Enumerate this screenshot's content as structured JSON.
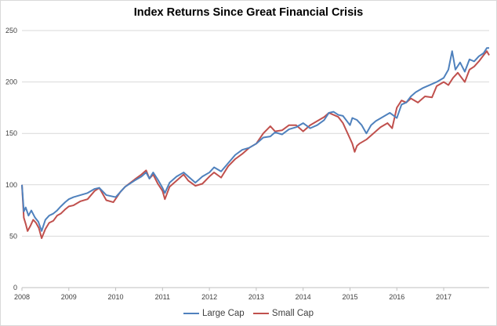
{
  "chart_data": {
    "type": "line",
    "title": "Index Returns Since Great Financial Crisis",
    "xlabel": "",
    "ylabel": "",
    "ylim": [
      0,
      250
    ],
    "yticks": [
      0,
      50,
      100,
      150,
      200,
      250
    ],
    "xlim": [
      2008.0,
      2017.97
    ],
    "xticks": [
      "2008",
      "2009",
      "2010",
      "2011",
      "2012",
      "2013",
      "2014",
      "2015",
      "2016",
      "2017"
    ],
    "grid": true,
    "legend_position": "bottom",
    "series": [
      {
        "name": "Large Cap",
        "color": "#4f81bd",
        "points": [
          [
            2008.0,
            100
          ],
          [
            2008.04,
            74
          ],
          [
            2008.08,
            78
          ],
          [
            2008.14,
            70
          ],
          [
            2008.2,
            75
          ],
          [
            2008.28,
            68
          ],
          [
            2008.35,
            64
          ],
          [
            2008.42,
            55
          ],
          [
            2008.5,
            66
          ],
          [
            2008.58,
            70
          ],
          [
            2008.67,
            72
          ],
          [
            2008.75,
            75
          ],
          [
            2008.83,
            79
          ],
          [
            2008.92,
            83
          ],
          [
            2009.0,
            86
          ],
          [
            2009.1,
            88
          ],
          [
            2009.25,
            90
          ],
          [
            2009.4,
            92
          ],
          [
            2009.55,
            96
          ],
          [
            2009.65,
            97
          ],
          [
            2009.8,
            90
          ],
          [
            2010.0,
            88
          ],
          [
            2010.1,
            93
          ],
          [
            2010.2,
            98
          ],
          [
            2010.4,
            104
          ],
          [
            2010.55,
            108
          ],
          [
            2010.65,
            112
          ],
          [
            2010.72,
            106
          ],
          [
            2010.8,
            112
          ],
          [
            2010.9,
            105
          ],
          [
            2011.0,
            97
          ],
          [
            2011.05,
            92
          ],
          [
            2011.15,
            102
          ],
          [
            2011.3,
            108
          ],
          [
            2011.45,
            112
          ],
          [
            2011.55,
            108
          ],
          [
            2011.7,
            102
          ],
          [
            2011.85,
            108
          ],
          [
            2012.0,
            112
          ],
          [
            2012.1,
            117
          ],
          [
            2012.25,
            113
          ],
          [
            2012.4,
            121
          ],
          [
            2012.55,
            129
          ],
          [
            2012.7,
            134
          ],
          [
            2012.85,
            136
          ],
          [
            2013.0,
            140
          ],
          [
            2013.15,
            146
          ],
          [
            2013.3,
            147
          ],
          [
            2013.4,
            151
          ],
          [
            2013.55,
            149
          ],
          [
            2013.7,
            154
          ],
          [
            2013.85,
            156
          ],
          [
            2014.0,
            160
          ],
          [
            2014.15,
            155
          ],
          [
            2014.3,
            158
          ],
          [
            2014.45,
            163
          ],
          [
            2014.55,
            170
          ],
          [
            2014.65,
            171
          ],
          [
            2014.75,
            168
          ],
          [
            2014.85,
            167
          ],
          [
            2015.0,
            158
          ],
          [
            2015.05,
            165
          ],
          [
            2015.15,
            163
          ],
          [
            2015.25,
            158
          ],
          [
            2015.35,
            150
          ],
          [
            2015.45,
            158
          ],
          [
            2015.55,
            162
          ],
          [
            2015.7,
            166
          ],
          [
            2015.85,
            170
          ],
          [
            2016.0,
            165
          ],
          [
            2016.1,
            178
          ],
          [
            2016.2,
            180
          ],
          [
            2016.3,
            186
          ],
          [
            2016.4,
            190
          ],
          [
            2016.55,
            194
          ],
          [
            2016.7,
            197
          ],
          [
            2016.85,
            200
          ],
          [
            2017.0,
            204
          ],
          [
            2017.1,
            212
          ],
          [
            2017.18,
            230
          ],
          [
            2017.25,
            212
          ],
          [
            2017.35,
            219
          ],
          [
            2017.45,
            210
          ],
          [
            2017.55,
            222
          ],
          [
            2017.65,
            220
          ],
          [
            2017.75,
            225
          ],
          [
            2017.85,
            228
          ],
          [
            2017.92,
            233
          ],
          [
            2017.97,
            233
          ]
        ]
      },
      {
        "name": "Small Cap",
        "color": "#c0504d",
        "points": [
          [
            2008.0,
            100
          ],
          [
            2008.04,
            68
          ],
          [
            2008.08,
            62
          ],
          [
            2008.12,
            55
          ],
          [
            2008.18,
            60
          ],
          [
            2008.24,
            66
          ],
          [
            2008.3,
            63
          ],
          [
            2008.36,
            58
          ],
          [
            2008.42,
            48
          ],
          [
            2008.5,
            57
          ],
          [
            2008.58,
            63
          ],
          [
            2008.67,
            65
          ],
          [
            2008.75,
            70
          ],
          [
            2008.83,
            72
          ],
          [
            2008.92,
            76
          ],
          [
            2009.0,
            79
          ],
          [
            2009.1,
            80
          ],
          [
            2009.25,
            84
          ],
          [
            2009.4,
            86
          ],
          [
            2009.55,
            94
          ],
          [
            2009.65,
            97
          ],
          [
            2009.8,
            85
          ],
          [
            2009.95,
            83
          ],
          [
            2010.1,
            93
          ],
          [
            2010.2,
            98
          ],
          [
            2010.4,
            105
          ],
          [
            2010.55,
            110
          ],
          [
            2010.65,
            114
          ],
          [
            2010.72,
            106
          ],
          [
            2010.8,
            110
          ],
          [
            2010.9,
            101
          ],
          [
            2011.0,
            94
          ],
          [
            2011.05,
            86
          ],
          [
            2011.15,
            98
          ],
          [
            2011.3,
            104
          ],
          [
            2011.45,
            110
          ],
          [
            2011.55,
            104
          ],
          [
            2011.7,
            99
          ],
          [
            2011.85,
            101
          ],
          [
            2012.0,
            108
          ],
          [
            2012.1,
            112
          ],
          [
            2012.25,
            107
          ],
          [
            2012.4,
            118
          ],
          [
            2012.55,
            125
          ],
          [
            2012.7,
            130
          ],
          [
            2012.85,
            136
          ],
          [
            2013.0,
            140
          ],
          [
            2013.15,
            150
          ],
          [
            2013.3,
            157
          ],
          [
            2013.4,
            152
          ],
          [
            2013.55,
            153
          ],
          [
            2013.7,
            158
          ],
          [
            2013.85,
            158
          ],
          [
            2014.0,
            152
          ],
          [
            2014.15,
            158
          ],
          [
            2014.3,
            162
          ],
          [
            2014.45,
            166
          ],
          [
            2014.55,
            170
          ],
          [
            2014.65,
            168
          ],
          [
            2014.75,
            166
          ],
          [
            2014.85,
            160
          ],
          [
            2015.0,
            145
          ],
          [
            2015.05,
            140
          ],
          [
            2015.1,
            132
          ],
          [
            2015.15,
            138
          ],
          [
            2015.2,
            140
          ],
          [
            2015.35,
            144
          ],
          [
            2015.5,
            150
          ],
          [
            2015.65,
            156
          ],
          [
            2015.8,
            160
          ],
          [
            2015.9,
            155
          ],
          [
            2016.0,
            175
          ],
          [
            2016.1,
            182
          ],
          [
            2016.2,
            180
          ],
          [
            2016.3,
            184
          ],
          [
            2016.45,
            180
          ],
          [
            2016.6,
            186
          ],
          [
            2016.75,
            185
          ],
          [
            2016.85,
            196
          ],
          [
            2017.0,
            200
          ],
          [
            2017.1,
            197
          ],
          [
            2017.2,
            204
          ],
          [
            2017.3,
            209
          ],
          [
            2017.45,
            200
          ],
          [
            2017.55,
            212
          ],
          [
            2017.65,
            215
          ],
          [
            2017.75,
            220
          ],
          [
            2017.85,
            226
          ],
          [
            2017.92,
            230
          ],
          [
            2017.97,
            226
          ]
        ]
      }
    ]
  }
}
